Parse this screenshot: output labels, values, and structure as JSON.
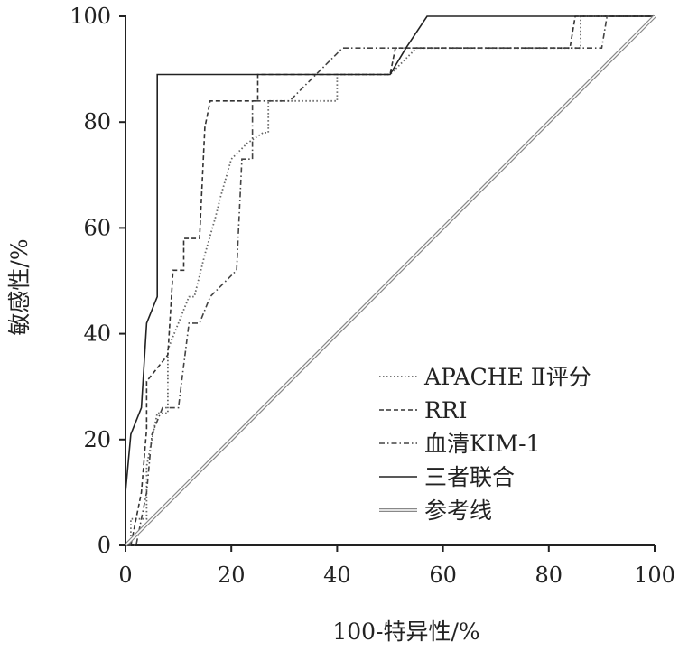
{
  "chart_data": {
    "type": "line",
    "title": "",
    "xlabel": "100-特异性/%",
    "ylabel": "敏感性/%",
    "xlim": [
      0,
      100
    ],
    "ylim": [
      0,
      100
    ],
    "x_ticks": [
      "0",
      "20",
      "40",
      "60",
      "80",
      "100"
    ],
    "y_ticks": [
      "0",
      "20",
      "40",
      "60",
      "80",
      "100"
    ],
    "legend_position": "bottom-right",
    "series": [
      {
        "name": "APACHE Ⅱ评分",
        "style": "dotted",
        "color": "#666666",
        "points": [
          [
            0,
            0
          ],
          [
            1,
            0
          ],
          [
            1,
            5
          ],
          [
            4,
            5
          ],
          [
            4,
            15
          ],
          [
            6,
            25
          ],
          [
            8,
            25
          ],
          [
            8,
            37
          ],
          [
            10,
            42
          ],
          [
            12,
            47
          ],
          [
            13,
            47
          ],
          [
            15,
            55
          ],
          [
            17,
            62
          ],
          [
            18,
            66
          ],
          [
            20,
            73
          ],
          [
            23,
            76
          ],
          [
            26,
            78
          ],
          [
            27,
            78
          ],
          [
            27,
            84
          ],
          [
            40,
            84
          ],
          [
            40,
            89
          ],
          [
            50,
            89
          ],
          [
            55,
            94
          ],
          [
            86,
            94
          ],
          [
            86,
            100
          ],
          [
            100,
            100
          ]
        ]
      },
      {
        "name": "RRI",
        "style": "dashed",
        "color": "#333333",
        "points": [
          [
            0,
            0
          ],
          [
            1,
            0
          ],
          [
            2,
            5
          ],
          [
            3,
            10
          ],
          [
            4,
            22
          ],
          [
            4,
            31
          ],
          [
            8,
            36
          ],
          [
            9,
            52
          ],
          [
            11,
            52
          ],
          [
            11,
            58
          ],
          [
            14,
            58
          ],
          [
            15,
            79
          ],
          [
            16,
            84
          ],
          [
            25,
            84
          ],
          [
            25,
            89
          ],
          [
            50,
            89
          ],
          [
            51,
            94
          ],
          [
            84,
            94
          ],
          [
            85,
            100
          ],
          [
            100,
            100
          ]
        ]
      },
      {
        "name": "血清KIM-1",
        "style": "dashdot",
        "color": "#444444",
        "points": [
          [
            0,
            0
          ],
          [
            2,
            0
          ],
          [
            3,
            5
          ],
          [
            4,
            10
          ],
          [
            5,
            21
          ],
          [
            7,
            26
          ],
          [
            10,
            26
          ],
          [
            12,
            42
          ],
          [
            14,
            42
          ],
          [
            16,
            47
          ],
          [
            19,
            50
          ],
          [
            21,
            52
          ],
          [
            22,
            73
          ],
          [
            24,
            73
          ],
          [
            24,
            84
          ],
          [
            31,
            84
          ],
          [
            41,
            94
          ],
          [
            90,
            94
          ],
          [
            91,
            100
          ],
          [
            100,
            100
          ]
        ]
      },
      {
        "name": "三者联合",
        "style": "solid",
        "color": "#222222",
        "points": [
          [
            0,
            0
          ],
          [
            0,
            10
          ],
          [
            1,
            21
          ],
          [
            3,
            26
          ],
          [
            4,
            42
          ],
          [
            6,
            47
          ],
          [
            6,
            89
          ],
          [
            50,
            89
          ],
          [
            53,
            94
          ],
          [
            57,
            100
          ],
          [
            100,
            100
          ]
        ]
      },
      {
        "name": "参考线",
        "style": "double",
        "color": "#888888",
        "points": [
          [
            0,
            0
          ],
          [
            100,
            100
          ]
        ]
      }
    ]
  }
}
